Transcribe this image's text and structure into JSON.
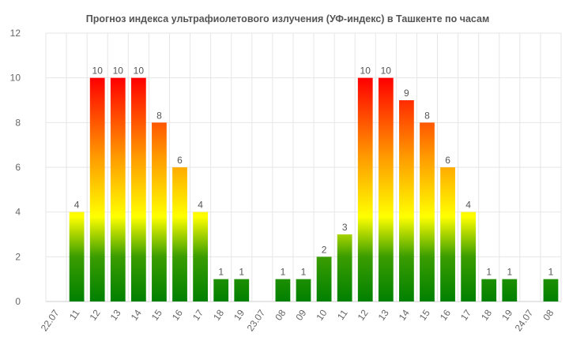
{
  "chart_data": {
    "type": "bar",
    "title": "Прогноз индекса ультрафиолетового излучения (УФ-индекс) в Ташкенте по часам",
    "xlabel": "",
    "ylabel": "",
    "ylim": [
      0,
      12
    ],
    "yticks": [
      0,
      2,
      4,
      6,
      8,
      10,
      12
    ],
    "grid": true,
    "legend": "none",
    "colors": {
      "gradient_top": "#ff0000",
      "gradient_orange": "#ff9900",
      "gradient_yellow": "#ffff00",
      "gradient_green": "#008000",
      "grid": "#e6e6e6",
      "axis": "#cccccc"
    },
    "categories": [
      "22.07",
      "11",
      "12",
      "13",
      "14",
      "15",
      "16",
      "17",
      "18",
      "19",
      "23.07",
      "08",
      "09",
      "10",
      "11",
      "12",
      "13",
      "14",
      "15",
      "16",
      "17",
      "18",
      "19",
      "24.07",
      "08"
    ],
    "values": [
      null,
      4,
      10,
      10,
      10,
      8,
      6,
      4,
      1,
      1,
      null,
      1,
      1,
      2,
      3,
      10,
      10,
      9,
      8,
      6,
      4,
      1,
      1,
      null,
      1
    ]
  }
}
